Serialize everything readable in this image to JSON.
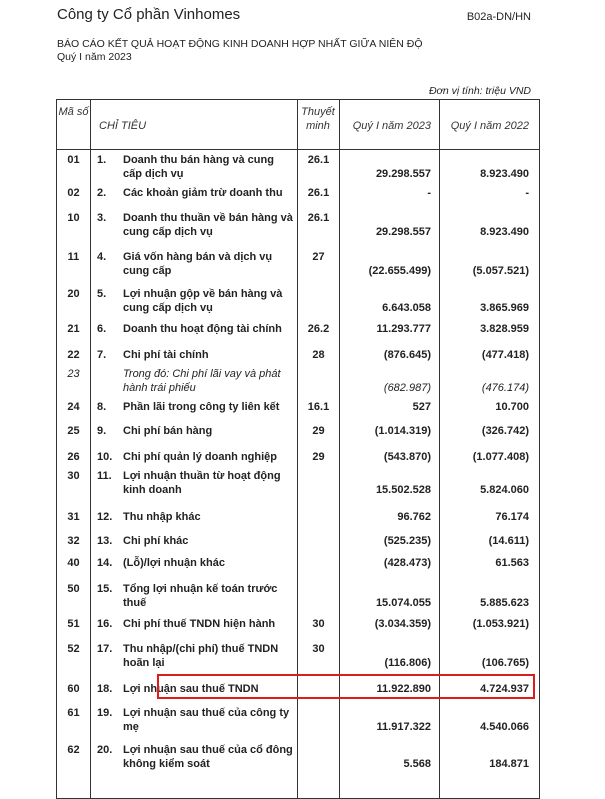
{
  "header": {
    "company": "Công ty Cổ phần Vinhomes",
    "form_code": "B02a-DN/HN",
    "title": "BÁO CÁO KẾT QUẢ HOẠT ĐỘNG KINH DOANH HỢP NHẤT GIỮA NIÊN ĐỘ",
    "period": "Quý I năm 2023",
    "unit": "Đơn vị tính: triệu VND"
  },
  "table": {
    "columns": {
      "code": "Mã số",
      "item": "CHỈ TIÊU",
      "note": "Thuyết minh",
      "q1_2023": "Quý I năm 2023",
      "q1_2022": "Quý I năm 2022"
    },
    "rows": [
      {
        "code": "01",
        "num": "1.",
        "label": "Doanh thu bán hàng và cung cấp dịch vụ",
        "note": "26.1",
        "v2023": "29.298.557",
        "v2022": "8.923.490"
      },
      {
        "code": "02",
        "num": "2.",
        "label": "Các khoản giảm trừ doanh thu",
        "note": "26.1",
        "v2023": "-",
        "v2022": "-"
      },
      {
        "code": "10",
        "num": "3.",
        "label": "Doanh thu thuần về bán hàng và cung cấp dịch vụ",
        "note": "26.1",
        "v2023": "29.298.557",
        "v2022": "8.923.490"
      },
      {
        "code": "11",
        "num": "4.",
        "label": "Giá vốn hàng bán và dịch vụ cung cấp",
        "note": "27",
        "v2023": "(22.655.499)",
        "v2022": "(5.057.521)"
      },
      {
        "code": "20",
        "num": "5.",
        "label": "Lợi nhuận gộp về bán hàng và cung cấp dịch vụ",
        "note": "",
        "v2023": "6.643.058",
        "v2022": "3.865.969"
      },
      {
        "code": "21",
        "num": "6.",
        "label": "Doanh thu hoạt động tài chính",
        "note": "26.2",
        "v2023": "11.293.777",
        "v2022": "3.828.959"
      },
      {
        "code": "22",
        "num": "7.",
        "label": "Chi phí tài chính",
        "note": "28",
        "v2023": "(876.645)",
        "v2022": "(477.418)"
      },
      {
        "code": "23",
        "num": "",
        "label": "Trong đó: Chi phí lãi vay và phát hành trái phiếu",
        "note": "",
        "v2023": "(682.987)",
        "v2022": "(476.174)",
        "sub": true
      },
      {
        "code": "24",
        "num": "8.",
        "label": "Phần lãi trong công ty liên kết",
        "note": "16.1",
        "v2023": "527",
        "v2022": "10.700"
      },
      {
        "code": "25",
        "num": "9.",
        "label": "Chi phí bán hàng",
        "note": "29",
        "v2023": "(1.014.319)",
        "v2022": "(326.742)"
      },
      {
        "code": "26",
        "num": "10.",
        "label": "Chi phí quản lý doanh nghiệp",
        "note": "29",
        "v2023": "(543.870)",
        "v2022": "(1.077.408)"
      },
      {
        "code": "30",
        "num": "11.",
        "label": "Lợi nhuận thuần từ hoạt động kinh doanh",
        "note": "",
        "v2023": "15.502.528",
        "v2022": "5.824.060"
      },
      {
        "code": "31",
        "num": "12.",
        "label": "Thu nhập khác",
        "note": "",
        "v2023": "96.762",
        "v2022": "76.174"
      },
      {
        "code": "32",
        "num": "13.",
        "label": "Chi phí khác",
        "note": "",
        "v2023": "(525.235)",
        "v2022": "(14.611)"
      },
      {
        "code": "40",
        "num": "14.",
        "label": "(Lỗ)/lợi nhuận khác",
        "note": "",
        "v2023": "(428.473)",
        "v2022": "61.563"
      },
      {
        "code": "50",
        "num": "15.",
        "label": "Tổng lợi nhuận kế toán trước thuế",
        "note": "",
        "v2023": "15.074.055",
        "v2022": "5.885.623"
      },
      {
        "code": "51",
        "num": "16.",
        "label": "Chi phí thuế TNDN hiện hành",
        "note": "30",
        "v2023": "(3.034.359)",
        "v2022": "(1.053.921)"
      },
      {
        "code": "52",
        "num": "17.",
        "label": "Thu nhập/(chi phí) thuế TNDN hoãn lại",
        "note": "30",
        "v2023": "(116.806)",
        "v2022": "(106.765)"
      },
      {
        "code": "60",
        "num": "18.",
        "label": "Lợi nhuận sau thuế TNDN",
        "note": "",
        "v2023": "11.922.890",
        "v2022": "4.724.937"
      },
      {
        "code": "61",
        "num": "19.",
        "label": "Lợi nhuận sau thuế của công ty mẹ",
        "note": "",
        "v2023": "11.917.322",
        "v2022": "4.540.066"
      },
      {
        "code": "62",
        "num": "20.",
        "label": "Lợi nhuận sau thuế của cổ đông không kiểm soát",
        "note": "",
        "v2023": "5.568",
        "v2022": "184.871"
      }
    ]
  },
  "highlight_color": "#e01b1b"
}
